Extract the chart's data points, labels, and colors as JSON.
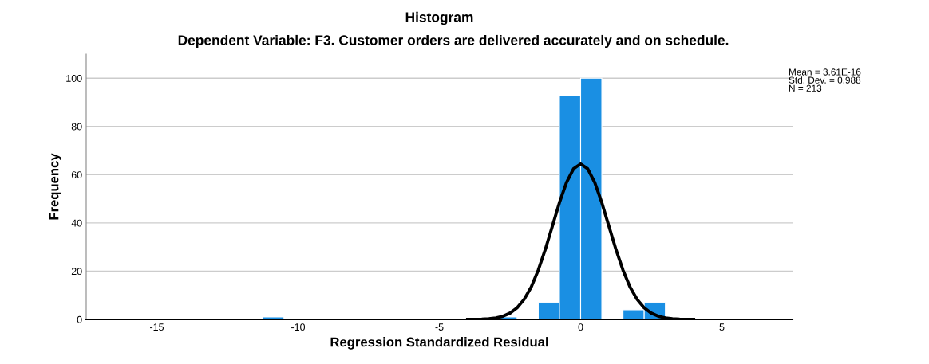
{
  "chart_data": {
    "type": "histogram",
    "title": "Histogram",
    "subtitle": "Dependent Variable: F3. Customer orders are delivered accurately and on schedule.",
    "xlabel": "Regression Standardized Residual",
    "ylabel": "Frequency",
    "bins": [
      -11.25,
      -10.5,
      -9.75,
      -9.0,
      -8.25,
      -7.5,
      -6.75,
      -6.0,
      -5.25,
      -4.5,
      -3.75,
      -3.0,
      -2.25,
      -1.5,
      -0.75,
      0.0,
      0.75,
      1.5,
      2.25,
      3.0
    ],
    "values": [
      1,
      0,
      0,
      0,
      0,
      0,
      0,
      0,
      0,
      0,
      0,
      1,
      0,
      7,
      93,
      100,
      0,
      4,
      7
    ],
    "color": "#1a8fe3",
    "series": [
      {
        "type": "line",
        "color": "#000000",
        "x": [
          -4.0,
          -3.5,
          -3.25,
          -3.0,
          -2.75,
          -2.5,
          -2.25,
          -2.0,
          -1.75,
          -1.5,
          -1.25,
          -1.0,
          -0.75,
          -0.5,
          -0.25,
          0.0,
          0.25,
          0.5,
          0.75,
          1.0,
          1.25,
          1.5,
          1.75,
          2.0,
          2.25,
          2.5,
          2.75,
          3.0,
          3.25,
          3.5,
          4.0
        ],
        "values": [
          0,
          0.1,
          0.3,
          0.6,
          1.3,
          2.6,
          4.8,
          8.3,
          13.4,
          20.4,
          29.0,
          38.7,
          48.4,
          56.8,
          62.5,
          64.5,
          62.5,
          56.8,
          48.4,
          38.7,
          29.0,
          20.4,
          13.4,
          8.3,
          4.8,
          2.6,
          1.3,
          0.6,
          0.3,
          0.1,
          0
        ]
      }
    ],
    "annotations": [
      "Mean = 3.61E-16\nStd. Dev. = 0.988\nN = 213"
    ],
    "xlim": [
      -17.5,
      7.5
    ],
    "xticks": [
      {
        "value": -15,
        "label": "-15"
      },
      {
        "value": -10,
        "label": "-10"
      },
      {
        "value": -5,
        "label": "-5"
      },
      0,
      5
    ],
    "ylim": [
      0,
      110
    ],
    "yticks": [
      0,
      20,
      40,
      60,
      80,
      100
    ],
    "grid": "y",
    "legend": false
  }
}
